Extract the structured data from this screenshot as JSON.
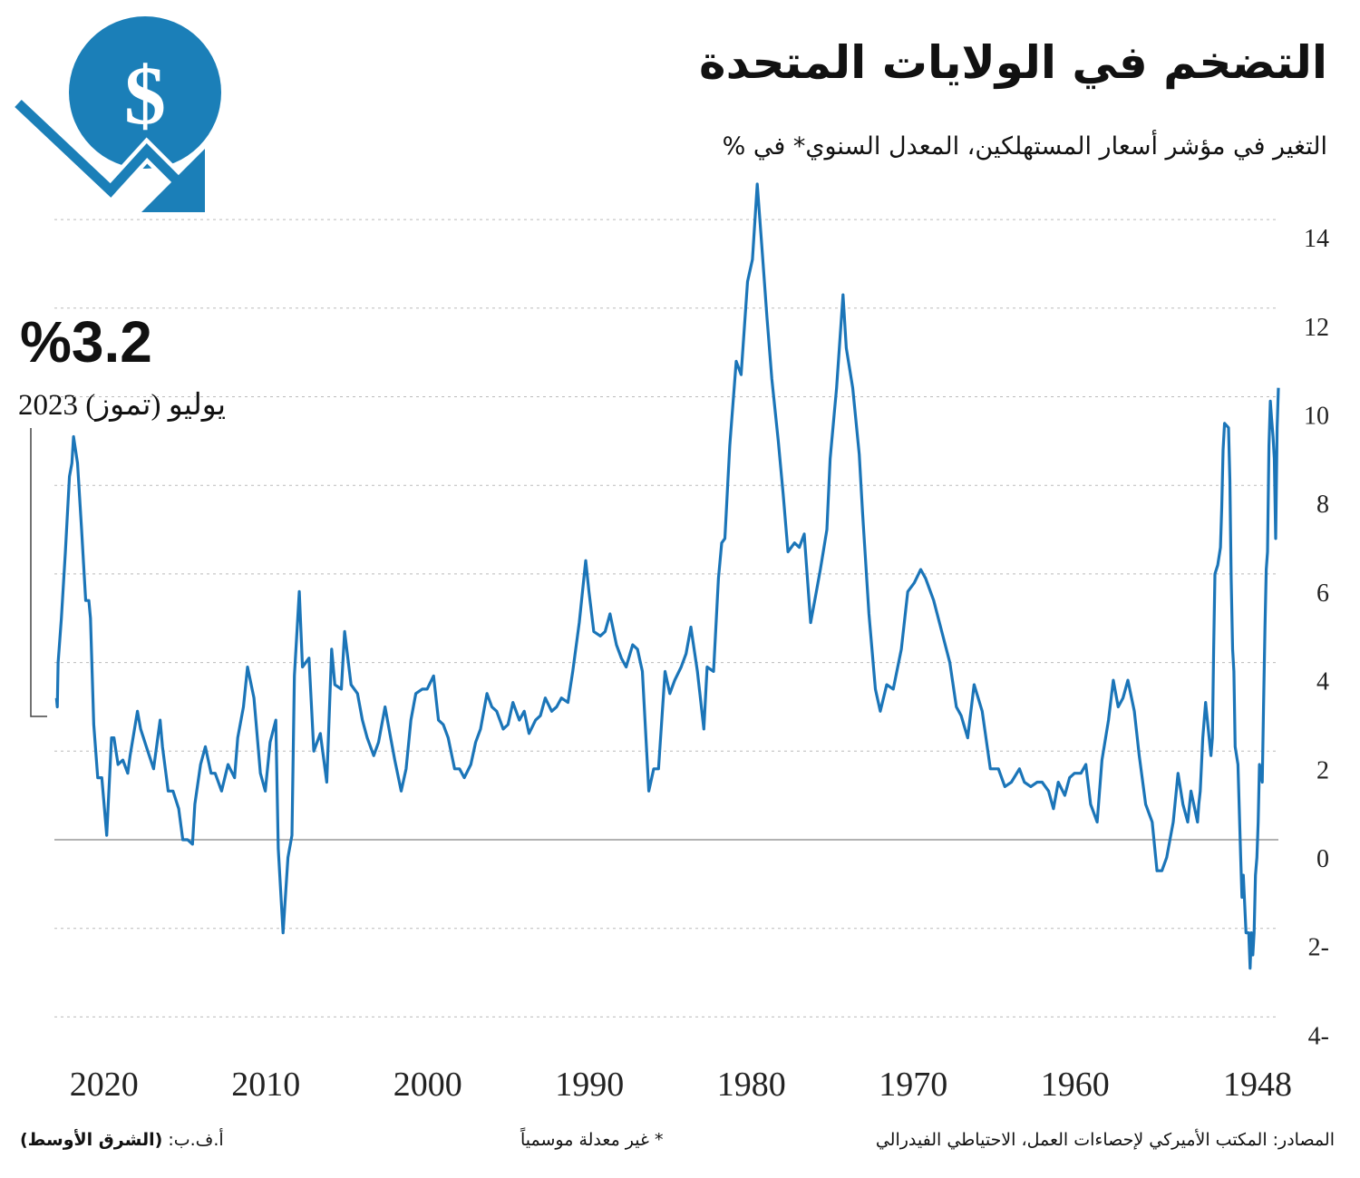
{
  "header": {
    "title": "التضخم في الولايات المتحدة",
    "subtitle": "التغير في مؤشر أسعار المستهلكين، المعدل السنوي* في %"
  },
  "annotation": {
    "value": "%3.2",
    "date": "يوليو (تموز) 2023"
  },
  "icon": "dollar-coin-down-trend-arrow",
  "colors": {
    "line": "#1b75b8",
    "icon": "#1b7fb8",
    "grid": "#bbbbbb",
    "zero_line": "#999999"
  },
  "footer": {
    "sources": "المصادر: المكتب الأميركي لإحصاءات العمل، الاحتياطي الفيدرالي",
    "note": "* غير معدلة موسمياً",
    "credit_prefix": "أ.ف.ب:",
    "credit": "(الشرق الأوسط)"
  },
  "chart_data": {
    "type": "line",
    "title": "التضخم في الولايات المتحدة",
    "ylabel": "",
    "xlabel": "",
    "x_direction": "reversed (newest on left)",
    "ylim": [
      -4,
      14
    ],
    "yticks": [
      14,
      12,
      10,
      8,
      6,
      4,
      2,
      0,
      -2,
      -4
    ],
    "ytick_labels": [
      "14",
      "12",
      "10",
      "8",
      "6",
      "4",
      "2",
      "0",
      "2-",
      "4-"
    ],
    "xticks": [
      2020,
      2010,
      2000,
      1990,
      1980,
      1970,
      1960,
      1948
    ],
    "xtick_labels": [
      "2020",
      "2010",
      "2000",
      "1990",
      "1980",
      "1970",
      "1960",
      "1948"
    ],
    "grid": "horizontal dotted",
    "series": [
      {
        "points": [
          [
            1948.0,
            10.2
          ],
          [
            1948.08,
            9.3
          ],
          [
            1948.17,
            6.8
          ],
          [
            1948.25,
            8.6
          ],
          [
            1948.33,
            9.1
          ],
          [
            1948.42,
            9.5
          ],
          [
            1948.5,
            9.9
          ],
          [
            1948.58,
            8.9
          ],
          [
            1948.67,
            6.5
          ],
          [
            1948.75,
            6.1
          ],
          [
            1948.83,
            4.8
          ],
          [
            1948.92,
            3.0
          ],
          [
            1949.0,
            1.3
          ],
          [
            1949.17,
            1.7
          ],
          [
            1949.25,
            0.4
          ],
          [
            1949.33,
            -0.4
          ],
          [
            1949.42,
            -0.8
          ],
          [
            1949.5,
            -2.1
          ],
          [
            1949.58,
            -2.6
          ],
          [
            1949.67,
            -2.1
          ],
          [
            1949.75,
            -2.9
          ],
          [
            1949.83,
            -2.1
          ],
          [
            1949.92,
            -2.1
          ],
          [
            1950.0,
            -2.1
          ],
          [
            1950.17,
            -0.8
          ],
          [
            1950.25,
            -1.3
          ],
          [
            1950.33,
            -0.4
          ],
          [
            1950.5,
            1.7
          ],
          [
            1950.67,
            2.1
          ],
          [
            1950.75,
            3.8
          ],
          [
            1950.83,
            4.3
          ],
          [
            1950.92,
            5.9
          ],
          [
            1951.0,
            8.1
          ],
          [
            1951.08,
            9.3
          ],
          [
            1951.33,
            9.4
          ],
          [
            1951.42,
            8.8
          ],
          [
            1951.5,
            7.5
          ],
          [
            1951.58,
            6.6
          ],
          [
            1951.75,
            6.2
          ],
          [
            1951.92,
            6.0
          ],
          [
            1952.0,
            4.3
          ],
          [
            1952.08,
            2.3
          ],
          [
            1952.17,
            1.9
          ],
          [
            1952.5,
            3.1
          ],
          [
            1952.67,
            2.3
          ],
          [
            1952.83,
            1.1
          ],
          [
            1952.92,
            0.8
          ],
          [
            1953.0,
            0.4
          ],
          [
            1953.4,
            1.1
          ],
          [
            1953.6,
            0.4
          ],
          [
            1953.9,
            0.8
          ],
          [
            1954.2,
            1.5
          ],
          [
            1954.5,
            0.4
          ],
          [
            1954.9,
            -0.4
          ],
          [
            1955.2,
            -0.7
          ],
          [
            1955.5,
            -0.7
          ],
          [
            1955.8,
            0.4
          ],
          [
            1956.2,
            0.8
          ],
          [
            1956.6,
            1.9
          ],
          [
            1956.9,
            2.9
          ],
          [
            1957.3,
            3.6
          ],
          [
            1957.6,
            3.2
          ],
          [
            1957.9,
            3.0
          ],
          [
            1958.2,
            3.6
          ],
          [
            1958.5,
            2.7
          ],
          [
            1958.9,
            1.8
          ],
          [
            1959.2,
            0.4
          ],
          [
            1959.6,
            0.8
          ],
          [
            1959.9,
            1.7
          ],
          [
            1960.2,
            1.5
          ],
          [
            1960.6,
            1.5
          ],
          [
            1960.9,
            1.4
          ],
          [
            1961.2,
            1.0
          ],
          [
            1961.6,
            1.3
          ],
          [
            1961.9,
            0.7
          ],
          [
            1962.2,
            1.1
          ],
          [
            1962.6,
            1.3
          ],
          [
            1962.9,
            1.3
          ],
          [
            1963.3,
            1.2
          ],
          [
            1963.7,
            1.3
          ],
          [
            1964.0,
            1.6
          ],
          [
            1964.5,
            1.3
          ],
          [
            1964.9,
            1.2
          ],
          [
            1965.3,
            1.6
          ],
          [
            1965.8,
            1.6
          ],
          [
            1966.3,
            2.9
          ],
          [
            1966.8,
            3.5
          ],
          [
            1967.2,
            2.3
          ],
          [
            1967.6,
            2.8
          ],
          [
            1967.9,
            3.0
          ],
          [
            1968.3,
            4.0
          ],
          [
            1968.8,
            4.7
          ],
          [
            1969.3,
            5.4
          ],
          [
            1969.8,
            5.9
          ],
          [
            1970.1,
            6.1
          ],
          [
            1970.5,
            5.8
          ],
          [
            1970.9,
            5.6
          ],
          [
            1971.3,
            4.3
          ],
          [
            1971.8,
            3.4
          ],
          [
            1972.2,
            3.5
          ],
          [
            1972.6,
            2.9
          ],
          [
            1972.9,
            3.4
          ],
          [
            1973.3,
            5.1
          ],
          [
            1973.7,
            7.4
          ],
          [
            1973.9,
            8.7
          ],
          [
            1974.3,
            10.2
          ],
          [
            1974.7,
            11.1
          ],
          [
            1974.9,
            12.3
          ],
          [
            1975.3,
            10.2
          ],
          [
            1975.7,
            8.6
          ],
          [
            1975.9,
            7.0
          ],
          [
            1976.3,
            6.1
          ],
          [
            1976.6,
            5.5
          ],
          [
            1976.9,
            4.9
          ],
          [
            1977.3,
            6.9
          ],
          [
            1977.6,
            6.6
          ],
          [
            1977.9,
            6.7
          ],
          [
            1978.3,
            6.5
          ],
          [
            1978.6,
            7.8
          ],
          [
            1978.9,
            9.0
          ],
          [
            1979.3,
            10.4
          ],
          [
            1979.6,
            11.8
          ],
          [
            1979.9,
            13.3
          ],
          [
            1980.2,
            14.8
          ],
          [
            1980.5,
            13.1
          ],
          [
            1980.8,
            12.6
          ],
          [
            1981.2,
            10.5
          ],
          [
            1981.5,
            10.8
          ],
          [
            1981.9,
            8.9
          ],
          [
            1982.2,
            6.8
          ],
          [
            1982.4,
            6.7
          ],
          [
            1982.6,
            5.9
          ],
          [
            1982.9,
            3.8
          ],
          [
            1983.3,
            3.9
          ],
          [
            1983.5,
            2.5
          ],
          [
            1983.9,
            3.8
          ],
          [
            1984.3,
            4.8
          ],
          [
            1984.6,
            4.2
          ],
          [
            1984.9,
            3.9
          ],
          [
            1985.3,
            3.6
          ],
          [
            1985.6,
            3.3
          ],
          [
            1985.9,
            3.8
          ],
          [
            1986.3,
            1.6
          ],
          [
            1986.6,
            1.6
          ],
          [
            1986.9,
            1.1
          ],
          [
            1987.3,
            3.8
          ],
          [
            1987.6,
            4.3
          ],
          [
            1987.9,
            4.4
          ],
          [
            1988.3,
            3.9
          ],
          [
            1988.6,
            4.1
          ],
          [
            1988.9,
            4.4
          ],
          [
            1989.3,
            5.1
          ],
          [
            1989.6,
            4.7
          ],
          [
            1989.9,
            4.6
          ],
          [
            1990.3,
            4.7
          ],
          [
            1990.6,
            5.6
          ],
          [
            1990.8,
            6.3
          ],
          [
            1991.2,
            4.9
          ],
          [
            1991.6,
            3.8
          ],
          [
            1991.9,
            3.1
          ],
          [
            1992.3,
            3.2
          ],
          [
            1992.6,
            3.0
          ],
          [
            1992.9,
            2.9
          ],
          [
            1993.3,
            3.2
          ],
          [
            1993.6,
            2.8
          ],
          [
            1993.9,
            2.7
          ],
          [
            1994.3,
            2.4
          ],
          [
            1994.6,
            2.9
          ],
          [
            1994.9,
            2.7
          ],
          [
            1995.3,
            3.1
          ],
          [
            1995.6,
            2.6
          ],
          [
            1995.9,
            2.5
          ],
          [
            1996.3,
            2.9
          ],
          [
            1996.6,
            3.0
          ],
          [
            1996.9,
            3.3
          ],
          [
            1997.3,
            2.5
          ],
          [
            1997.6,
            2.2
          ],
          [
            1997.9,
            1.7
          ],
          [
            1998.3,
            1.4
          ],
          [
            1998.6,
            1.6
          ],
          [
            1998.9,
            1.6
          ],
          [
            1999.3,
            2.3
          ],
          [
            1999.6,
            2.6
          ],
          [
            1999.9,
            2.7
          ],
          [
            2000.2,
            3.7
          ],
          [
            2000.6,
            3.4
          ],
          [
            2000.9,
            3.4
          ],
          [
            2001.3,
            3.3
          ],
          [
            2001.6,
            2.7
          ],
          [
            2001.9,
            1.6
          ],
          [
            2002.2,
            1.1
          ],
          [
            2002.6,
            1.8
          ],
          [
            2002.9,
            2.4
          ],
          [
            2003.2,
            3.0
          ],
          [
            2003.6,
            2.2
          ],
          [
            2003.9,
            1.9
          ],
          [
            2004.3,
            2.3
          ],
          [
            2004.6,
            2.7
          ],
          [
            2004.9,
            3.3
          ],
          [
            2005.3,
            3.5
          ],
          [
            2005.7,
            4.7
          ],
          [
            2005.9,
            3.4
          ],
          [
            2006.3,
            3.5
          ],
          [
            2006.5,
            4.3
          ],
          [
            2006.8,
            1.3
          ],
          [
            2007.2,
            2.4
          ],
          [
            2007.6,
            2.0
          ],
          [
            2007.9,
            4.1
          ],
          [
            2008.3,
            3.9
          ],
          [
            2008.5,
            5.6
          ],
          [
            2008.8,
            3.7
          ],
          [
            2008.95,
            0.1
          ],
          [
            2009.2,
            -0.4
          ],
          [
            2009.5,
            -2.1
          ],
          [
            2009.8,
            -0.2
          ],
          [
            2009.95,
            2.7
          ],
          [
            2010.3,
            2.2
          ],
          [
            2010.6,
            1.1
          ],
          [
            2010.9,
            1.5
          ],
          [
            2011.3,
            3.2
          ],
          [
            2011.7,
            3.9
          ],
          [
            2011.95,
            3.0
          ],
          [
            2012.3,
            2.3
          ],
          [
            2012.5,
            1.4
          ],
          [
            2012.9,
            1.7
          ],
          [
            2013.3,
            1.1
          ],
          [
            2013.7,
            1.5
          ],
          [
            2013.95,
            1.5
          ],
          [
            2014.3,
            2.1
          ],
          [
            2014.6,
            1.7
          ],
          [
            2014.95,
            0.8
          ],
          [
            2015.1,
            -0.1
          ],
          [
            2015.4,
            0.0
          ],
          [
            2015.7,
            0.0
          ],
          [
            2015.95,
            0.7
          ],
          [
            2016.3,
            1.1
          ],
          [
            2016.6,
            1.1
          ],
          [
            2016.95,
            2.1
          ],
          [
            2017.1,
            2.7
          ],
          [
            2017.5,
            1.6
          ],
          [
            2017.95,
            2.1
          ],
          [
            2018.3,
            2.5
          ],
          [
            2018.5,
            2.9
          ],
          [
            2018.95,
            1.9
          ],
          [
            2019.1,
            1.5
          ],
          [
            2019.4,
            1.8
          ],
          [
            2019.7,
            1.7
          ],
          [
            2019.95,
            2.3
          ],
          [
            2020.1,
            2.3
          ],
          [
            2020.4,
            0.1
          ],
          [
            2020.7,
            1.4
          ],
          [
            2020.95,
            1.4
          ],
          [
            2021.2,
            2.6
          ],
          [
            2021.4,
            5.0
          ],
          [
            2021.5,
            5.4
          ],
          [
            2021.7,
            5.4
          ],
          [
            2021.95,
            7.0
          ],
          [
            2022.2,
            8.5
          ],
          [
            2022.45,
            9.1
          ],
          [
            2022.55,
            8.5
          ],
          [
            2022.7,
            8.2
          ],
          [
            2022.95,
            6.5
          ],
          [
            2023.2,
            5.0
          ],
          [
            2023.4,
            4.0
          ],
          [
            2023.45,
            3.0
          ],
          [
            2023.5,
            3.2
          ]
        ]
      }
    ]
  }
}
